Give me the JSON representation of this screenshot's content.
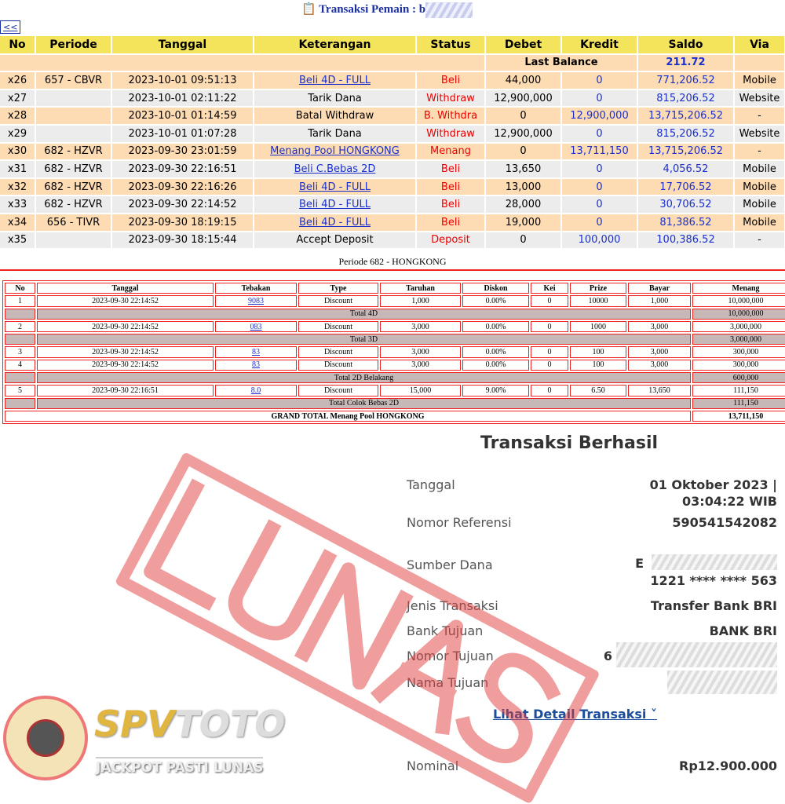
{
  "header": {
    "title": "Transaksi  Pemain : b",
    "back": "<<"
  },
  "table1": {
    "columns": [
      "No",
      "Periode",
      "Tanggal",
      "Keterangan",
      "Status",
      "Debet",
      "Kredit",
      "Saldo",
      "Via"
    ],
    "last_balance_label": "Last Balance",
    "last_balance": "211.72",
    "rows": [
      {
        "no": "x26",
        "periode": "657 - CBVR",
        "tanggal": "2023-10-01 09:51:13",
        "ket": "Beli 4D - FULL",
        "link": true,
        "status": "Beli",
        "debet": "44,000",
        "kredit": "0",
        "saldo": "771,206.52",
        "via": "Mobile"
      },
      {
        "no": "x27",
        "periode": "",
        "tanggal": "2023-10-01 02:11:22",
        "ket": "Tarik Dana",
        "link": false,
        "status": "Withdraw",
        "debet": "12,900,000",
        "kredit": "0",
        "saldo": "815,206.52",
        "via": "Website"
      },
      {
        "no": "x28",
        "periode": "",
        "tanggal": "2023-10-01 01:14:59",
        "ket": "Batal Withdraw",
        "link": false,
        "status": "B. Withdra",
        "debet": "0",
        "kredit": "12,900,000",
        "saldo": "13,715,206.52",
        "via": "-"
      },
      {
        "no": "x29",
        "periode": "",
        "tanggal": "2023-10-01 01:07:28",
        "ket": "Tarik Dana",
        "link": false,
        "status": "Withdraw",
        "debet": "12,900,000",
        "kredit": "0",
        "saldo": "815,206.52",
        "via": "Website"
      },
      {
        "no": "x30",
        "periode": "682 - HZVR",
        "tanggal": "2023-09-30 23:01:59",
        "ket": "Menang Pool HONGKONG",
        "link": true,
        "status": "Menang",
        "debet": "0",
        "kredit": "13,711,150",
        "saldo": "13,715,206.52",
        "via": "-"
      },
      {
        "no": "x31",
        "periode": "682 - HZVR",
        "tanggal": "2023-09-30 22:16:51",
        "ket": "Beli C.Bebas 2D",
        "link": true,
        "status": "Beli",
        "debet": "13,650",
        "kredit": "0",
        "saldo": "4,056.52",
        "via": "Mobile"
      },
      {
        "no": "x32",
        "periode": "682 - HZVR",
        "tanggal": "2023-09-30 22:16:26",
        "ket": "Beli 4D - FULL",
        "link": true,
        "status": "Beli",
        "debet": "13,000",
        "kredit": "0",
        "saldo": "17,706.52",
        "via": "Mobile"
      },
      {
        "no": "x33",
        "periode": "682 - HZVR",
        "tanggal": "2023-09-30 22:14:52",
        "ket": "Beli 4D - FULL",
        "link": true,
        "status": "Beli",
        "debet": "28,000",
        "kredit": "0",
        "saldo": "30,706.52",
        "via": "Mobile"
      },
      {
        "no": "x34",
        "periode": "656 - TIVR",
        "tanggal": "2023-09-30 18:19:15",
        "ket": "Beli 4D - FULL",
        "link": true,
        "status": "Beli",
        "debet": "19,000",
        "kredit": "0",
        "saldo": "81,386.52",
        "via": "Mobile"
      },
      {
        "no": "x35",
        "periode": "",
        "tanggal": "2023-09-30 18:15:44",
        "ket": "Accept Deposit",
        "link": false,
        "status": "Deposit",
        "debet": "0",
        "kredit": "100,000",
        "saldo": "100,386.52",
        "via": "-"
      }
    ]
  },
  "periode_title": "Periode 682 - HONGKONG",
  "table2": {
    "columns": [
      "No",
      "Tanggal",
      "Tebakan",
      "Type",
      "Taruhan",
      "Diskon",
      "Kei",
      "Prize",
      "Bayar",
      "Menang"
    ],
    "rows": [
      {
        "kind": "d",
        "cells": [
          "1",
          "2023-09-30 22:14:52",
          "9083",
          "Discount",
          "1,000",
          "0.00%",
          "0",
          "10000",
          "1,000",
          "10,000,000"
        ]
      },
      {
        "kind": "s",
        "label": "Total 4D",
        "value": "10,000,000"
      },
      {
        "kind": "d",
        "cells": [
          "2",
          "2023-09-30 22:14:52",
          "083",
          "Discount",
          "3,000",
          "0.00%",
          "0",
          "1000",
          "3,000",
          "3,000,000"
        ]
      },
      {
        "kind": "s",
        "label": "Total 3D",
        "value": "3,000,000"
      },
      {
        "kind": "d",
        "cells": [
          "3",
          "2023-09-30 22:14:52",
          "83",
          "Discount",
          "3,000",
          "0.00%",
          "0",
          "100",
          "3,000",
          "300,000"
        ]
      },
      {
        "kind": "d",
        "cells": [
          "4",
          "2023-09-30 22:14:52",
          "83",
          "Discount",
          "3,000",
          "0.00%",
          "0",
          "100",
          "3,000",
          "300,000"
        ]
      },
      {
        "kind": "s",
        "label": "Total 2D Belakang",
        "value": "600,000"
      },
      {
        "kind": "d",
        "cells": [
          "5",
          "2023-09-30 22:16:51",
          "8.0",
          "Discount",
          "15,000",
          "9.00%",
          "0",
          "6.50",
          "13,650",
          "111,150"
        ]
      },
      {
        "kind": "s",
        "label": "Total Colok Bebas 2D",
        "value": "111,150"
      },
      {
        "kind": "g",
        "label": "GRAND TOTAL  Menang Pool HONGKONG",
        "value": "13,711,150"
      }
    ]
  },
  "receipt": {
    "title": "Transaksi Berhasil",
    "tanggal_label": "Tanggal",
    "tanggal_1": "01 Oktober 2023 |",
    "tanggal_2": "03:04:22 WIB",
    "ref_label": "Nomor Referensi",
    "ref": "590541542082",
    "sumber_label": "Sumber Dana",
    "sumber_1": "E",
    "sumber_2": "1221 **** **** 563",
    "jenis_label": "Jenis Transaksi",
    "jenis": "Transfer Bank BRI",
    "bank_label": "Bank Tujuan",
    "bank": "BANK BRI",
    "nomor_label": "Nomor Tujuan",
    "nomor": "6",
    "nama_label": "Nama Tujuan",
    "detail": "Lihat Detail Transaksi ˅",
    "nominal_label": "Nominal",
    "nominal": "Rp12.900.000"
  },
  "stamp": "LUNAS",
  "logo": {
    "brand_a": "SPV",
    "brand_b": "TOTO",
    "tagline": "JACKPOT PASTI LUNAS"
  },
  "colors": {
    "header_yellow": "#f3e45c",
    "row_peach": "#fddcb4",
    "status_red": "#e00",
    "link_blue": "#1a2fcc",
    "border_red": "#e22"
  }
}
